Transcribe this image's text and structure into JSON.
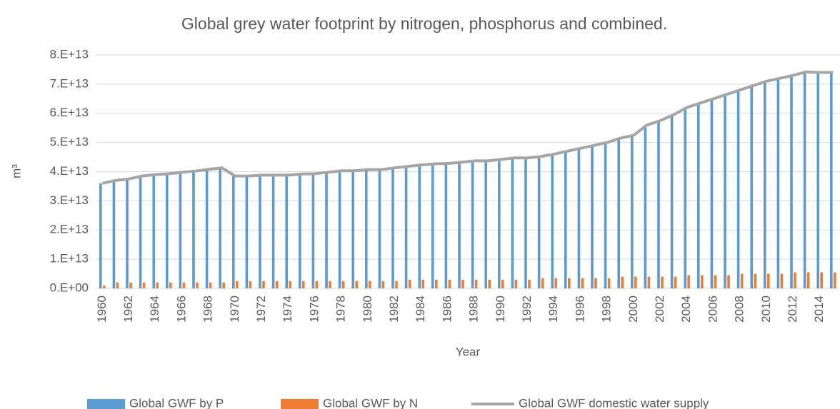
{
  "chart_data": {
    "type": "bar",
    "title": "Global grey water footprint by nitrogen, phosphorus and combined.",
    "x_label": "Year",
    "y_label": "m³",
    "categories": [
      "1960",
      null,
      "1962",
      null,
      "1964",
      null,
      "1966",
      null,
      "1968",
      null,
      "1970",
      null,
      "1972",
      null,
      "1974",
      null,
      "1976",
      null,
      "1978",
      null,
      "1980",
      null,
      "1982",
      null,
      "1984",
      null,
      "1986",
      null,
      "1988",
      null,
      "1990",
      null,
      "1992",
      null,
      "1994",
      null,
      "1996",
      null,
      "1998",
      null,
      "2000",
      null,
      "2002",
      null,
      "2004",
      null,
      "2006",
      null,
      "2008",
      null,
      "2010",
      null,
      "2012",
      null,
      "2014",
      null
    ],
    "series": [
      {
        "name": "Global GWF by P",
        "color": "#5b9bd5",
        "type": "bar",
        "values": [
          36000000000000.0,
          37000000000000.0,
          37500000000000.0,
          38500000000000.0,
          39000000000000.0,
          39300000000000.0,
          39800000000000.0,
          40200000000000.0,
          40800000000000.0,
          41300000000000.0,
          38500000000000.0,
          38500000000000.0,
          38800000000000.0,
          38800000000000.0,
          38800000000000.0,
          39200000000000.0,
          39300000000000.0,
          39800000000000.0,
          40300000000000.0,
          40300000000000.0,
          40700000000000.0,
          40700000000000.0,
          41300000000000.0,
          41800000000000.0,
          42300000000000.0,
          42700000000000.0,
          42800000000000.0,
          43200000000000.0,
          43700000000000.0,
          43700000000000.0,
          44200000000000.0,
          44700000000000.0,
          44700000000000.0,
          45200000000000.0,
          46000000000000.0,
          47000000000000.0,
          48000000000000.0,
          49000000000000.0,
          50000000000000.0,
          51500000000000.0,
          52500000000000.0,
          56000000000000.0,
          57500000000000.0,
          59000000000000.0,
          62000000000000.0,
          63500000000000.0,
          65000000000000.0,
          66500000000000.0,
          68000000000000.0,
          69500000000000.0,
          71000000000000.0,
          72000000000000.0,
          73000000000000.0,
          74000000000000.0,
          73800000000000.0,
          73800000000000.0
        ]
      },
      {
        "name": "Global GWF by N",
        "color": "#ed7d31",
        "type": "bar",
        "values": [
          1000000000000.0,
          2000000000000.0,
          2000000000000.0,
          2000000000000.0,
          2000000000000.0,
          2000000000000.0,
          2000000000000.0,
          2000000000000.0,
          2000000000000.0,
          2000000000000.0,
          2500000000000.0,
          2500000000000.0,
          2500000000000.0,
          2500000000000.0,
          2500000000000.0,
          2500000000000.0,
          2500000000000.0,
          2500000000000.0,
          2500000000000.0,
          2500000000000.0,
          2500000000000.0,
          2500000000000.0,
          2500000000000.0,
          3000000000000.0,
          3000000000000.0,
          3000000000000.0,
          3000000000000.0,
          3000000000000.0,
          3000000000000.0,
          3000000000000.0,
          3000000000000.0,
          3000000000000.0,
          3000000000000.0,
          3500000000000.0,
          3500000000000.0,
          3500000000000.0,
          3500000000000.0,
          3500000000000.0,
          3500000000000.0,
          4000000000000.0,
          4000000000000.0,
          4000000000000.0,
          4000000000000.0,
          4000000000000.0,
          4500000000000.0,
          4500000000000.0,
          4500000000000.0,
          4500000000000.0,
          5000000000000.0,
          5000000000000.0,
          5000000000000.0,
          5000000000000.0,
          5500000000000.0,
          5500000000000.0,
          5500000000000.0,
          5500000000000.0
        ]
      },
      {
        "name": "Global GWF domestic water supply",
        "color": "#a5a5a5",
        "type": "line",
        "values": [
          36000000000000.0,
          37000000000000.0,
          37500000000000.0,
          38500000000000.0,
          39000000000000.0,
          39300000000000.0,
          39800000000000.0,
          40200000000000.0,
          40800000000000.0,
          41300000000000.0,
          38500000000000.0,
          38500000000000.0,
          38800000000000.0,
          38800000000000.0,
          38800000000000.0,
          39200000000000.0,
          39300000000000.0,
          39800000000000.0,
          40300000000000.0,
          40300000000000.0,
          40700000000000.0,
          40700000000000.0,
          41300000000000.0,
          41800000000000.0,
          42300000000000.0,
          42700000000000.0,
          42800000000000.0,
          43200000000000.0,
          43700000000000.0,
          43700000000000.0,
          44200000000000.0,
          44700000000000.0,
          44700000000000.0,
          45200000000000.0,
          46000000000000.0,
          47000000000000.0,
          48000000000000.0,
          49000000000000.0,
          50000000000000.0,
          51500000000000.0,
          52500000000000.0,
          56000000000000.0,
          57500000000000.0,
          59500000000000.0,
          62000000000000.0,
          63500000000000.0,
          65000000000000.0,
          66500000000000.0,
          68000000000000.0,
          69500000000000.0,
          71000000000000.0,
          72000000000000.0,
          73000000000000.0,
          74200000000000.0,
          74000000000000.0,
          74000000000000.0
        ]
      }
    ],
    "ylim": [
      0,
      80000000000000.0
    ],
    "yticks": [
      {
        "value": 0,
        "label": "0.E+00"
      },
      {
        "value": 10000000000000.0,
        "label": "1.E+13"
      },
      {
        "value": 20000000000000.0,
        "label": "2.E+13"
      },
      {
        "value": 30000000000000.0,
        "label": "3.E+13"
      },
      {
        "value": 40000000000000.0,
        "label": "4.E+13"
      },
      {
        "value": 50000000000000.0,
        "label": "5.E+13"
      },
      {
        "value": 60000000000000.0,
        "label": "6.E+13"
      },
      {
        "value": 70000000000000.0,
        "label": "7.E+13"
      },
      {
        "value": 80000000000000.0,
        "label": "8.E+13"
      }
    ],
    "grid": true,
    "legend": "bottom"
  }
}
